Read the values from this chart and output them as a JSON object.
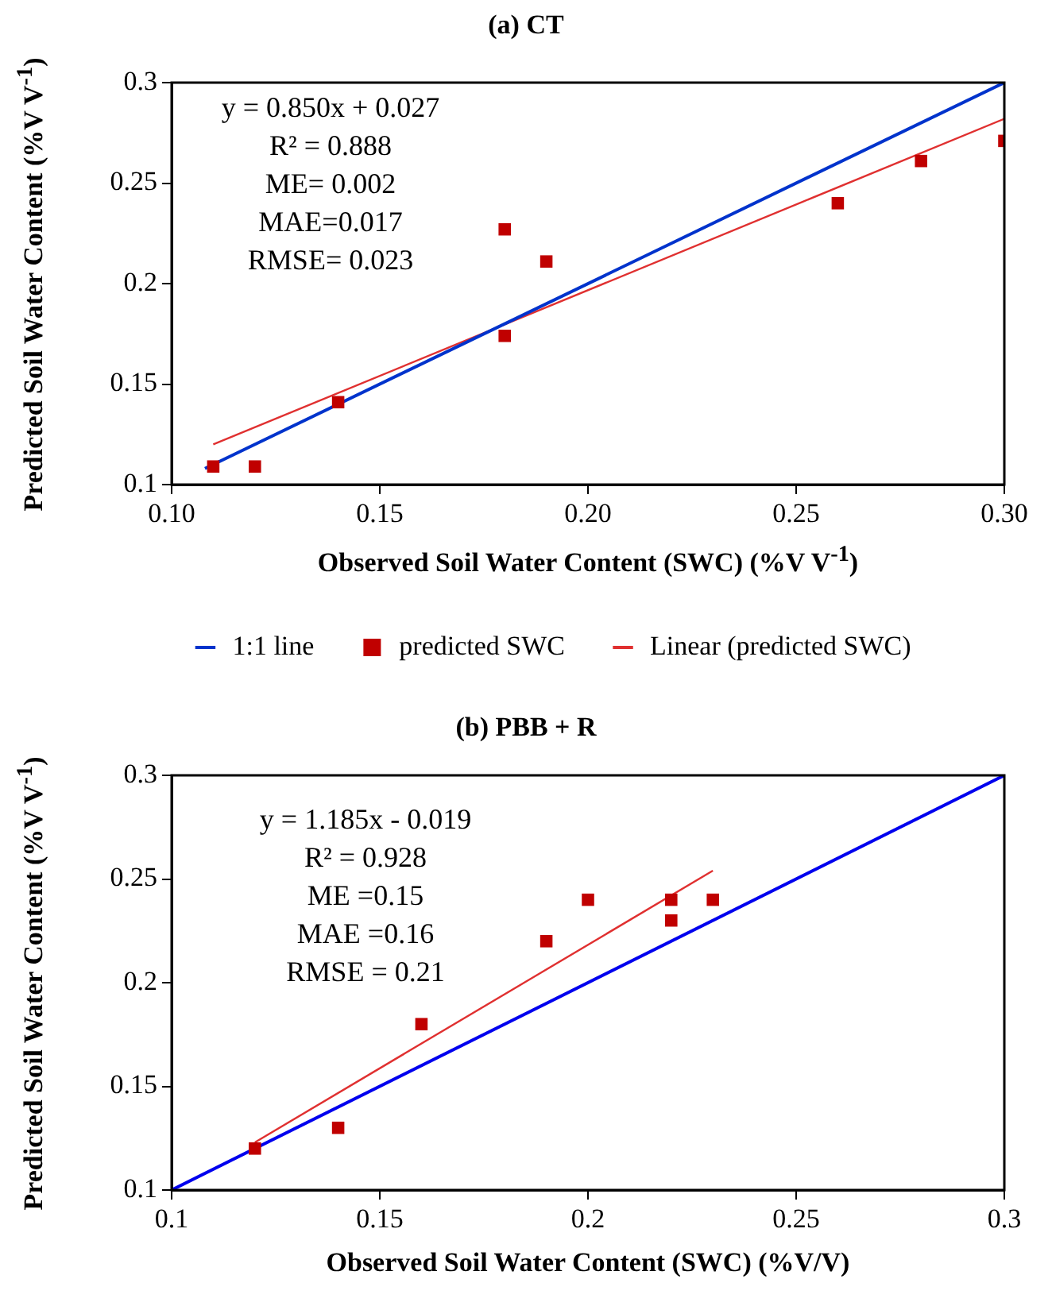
{
  "chart_data": [
    {
      "type": "scatter",
      "title": "(a) CT",
      "xlabel": "Observed Soil Water Content (SWC) (%V V$^{-1}$)",
      "ylabel": "Predicted Soil Water Content (%V V$^{-1}$)",
      "xlim": [
        0.1,
        0.3
      ],
      "xticks": [
        {
          "value": 0.1,
          "label": "0.10"
        },
        0.15,
        {
          "value": 0.2,
          "label": "0.20"
        },
        0.25,
        {
          "value": 0.3,
          "label": "0.30"
        }
      ],
      "ylim": [
        0.1,
        0.3
      ],
      "yticks": [
        0.1,
        0.15,
        0.2,
        0.25,
        0.3
      ],
      "grid": false,
      "legend": "bottom",
      "annotations": [
        "y = 0.850x + 0.027",
        "R² = 0.888",
        "ME= 0.002",
        "MAE=0.017",
        "RMSE= 0.023"
      ],
      "series": [
        {
          "name": "1:1 line",
          "type": "line",
          "color": "#0033cc",
          "marker": "none",
          "x": [
            0.108,
            0.3
          ],
          "values": [
            0.108,
            0.3
          ]
        },
        {
          "name": "predicted SWC",
          "type": "scatter",
          "color": "#c00000",
          "marker": "square",
          "x": [
            0.11,
            0.12,
            0.14,
            0.18,
            0.18,
            0.19,
            0.26,
            0.28,
            0.3
          ],
          "values": [
            0.109,
            0.109,
            0.141,
            0.227,
            0.174,
            0.211,
            0.24,
            0.261,
            0.271
          ]
        },
        {
          "name": "Linear (predicted SWC)",
          "type": "line",
          "color": "#e03030",
          "marker": "none",
          "x": [
            0.11,
            0.3
          ],
          "values": [
            0.12,
            0.282
          ]
        }
      ]
    },
    {
      "type": "scatter",
      "title": "(b) PBB + R",
      "xlabel": "Observed Soil Water Content (SWC) (%V/V)",
      "ylabel": "Predicted Soil Water Content (%V V$^{-1}$)",
      "xlim": [
        0.1,
        0.3
      ],
      "xticks": [
        0.1,
        0.15,
        0.2,
        0.25,
        0.3
      ],
      "ylim": [
        0.1,
        0.3
      ],
      "yticks": [
        0.1,
        0.15,
        0.2,
        0.25,
        0.3
      ],
      "grid": false,
      "annotations": [
        "y = 1.185x - 0.019",
        "R² = 0.928",
        "ME =0.15",
        "MAE =0.16",
        "RMSE = 0.21"
      ],
      "series": [
        {
          "type": "line",
          "color": "#0000ee",
          "marker": "none",
          "x": [
            0.1,
            0.3
          ],
          "values": [
            0.1,
            0.3
          ]
        },
        {
          "type": "scatter",
          "color": "#c00000",
          "marker": "square",
          "x": [
            0.12,
            0.14,
            0.16,
            0.19,
            0.2,
            0.22,
            0.22,
            0.23
          ],
          "values": [
            0.12,
            0.13,
            0.18,
            0.22,
            0.24,
            0.24,
            0.23,
            0.24
          ]
        },
        {
          "type": "line",
          "color": "#e03030",
          "marker": "none",
          "x": [
            0.12,
            0.23
          ],
          "values": [
            0.123,
            0.254
          ]
        }
      ]
    }
  ]
}
